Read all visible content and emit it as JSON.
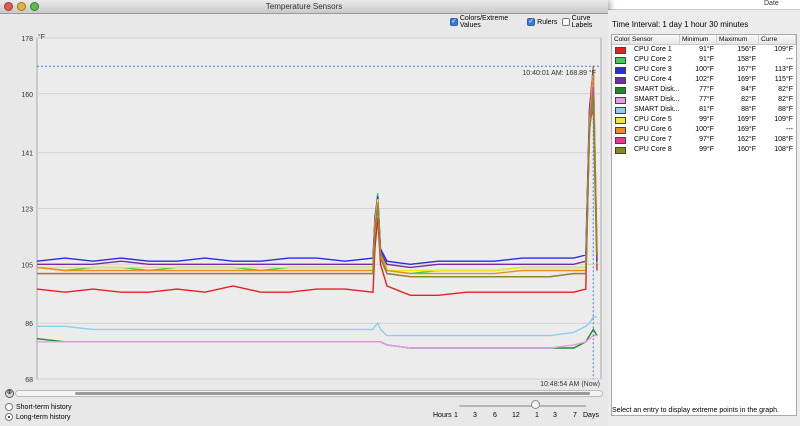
{
  "background": {
    "date_label": "Date"
  },
  "window": {
    "title": "Temperature Sensors"
  },
  "options": [
    {
      "label": "Colors/Extreme Values",
      "checked": true
    },
    {
      "label": "Rulers",
      "checked": true
    },
    {
      "label": "Curve Labels",
      "checked": false
    }
  ],
  "graph": {
    "unit": "°F",
    "y_ticks": [
      "178",
      "160",
      "141",
      "123",
      "105",
      "86",
      "68"
    ],
    "max_label": "10:40:01 AM: 168.89 °F",
    "now_label": "10:48:54 AM (Now)"
  },
  "chart_data": {
    "type": "line",
    "ylim": [
      68,
      178
    ],
    "y_ticks": [
      178,
      160,
      141,
      123,
      105,
      86,
      68
    ],
    "x": [
      0,
      30,
      60,
      90,
      120,
      150,
      180,
      210,
      240,
      270,
      300,
      330,
      360,
      362,
      365,
      368,
      375,
      400,
      430,
      460,
      490,
      520,
      550,
      575,
      588,
      592,
      596,
      600
    ],
    "series": [
      {
        "name": "CPU Core 1",
        "color": "#e82020",
        "values": [
          97,
          96,
          97,
          96,
          96,
          97,
          96,
          98,
          96,
          96,
          97,
          97,
          96,
          110,
          120,
          105,
          98,
          95,
          95,
          96,
          96,
          96,
          96,
          96,
          97,
          150,
          156,
          103
        ]
      },
      {
        "name": "CPU Core 2",
        "color": "#3ad24a",
        "values": [
          104,
          103,
          104,
          104,
          103,
          104,
          104,
          104,
          103,
          104,
          104,
          104,
          104,
          118,
          128,
          110,
          103,
          102,
          103,
          103,
          103,
          104,
          104,
          104,
          104,
          150,
          158,
          105
        ]
      },
      {
        "name": "CPU Core 3",
        "color": "#2c2ce0",
        "values": [
          106,
          107,
          106,
          107,
          106,
          106,
          107,
          106,
          106,
          107,
          107,
          106,
          107,
          120,
          127,
          110,
          106,
          105,
          106,
          106,
          106,
          107,
          107,
          107,
          108,
          155,
          167,
          108
        ]
      },
      {
        "name": "CPU Core 4",
        "color": "#7a2aa6",
        "values": [
          105,
          105,
          105,
          106,
          105,
          105,
          105,
          105,
          105,
          105,
          105,
          105,
          105,
          119,
          126,
          109,
          105,
          104,
          105,
          105,
          105,
          105,
          105,
          105,
          106,
          155,
          169,
          106
        ]
      },
      {
        "name": "SMART Disk 1",
        "color": "#1f8a2a",
        "values": [
          81,
          80,
          80,
          80,
          80,
          80,
          80,
          80,
          80,
          80,
          80,
          80,
          80,
          80,
          80,
          80,
          79,
          78,
          78,
          78,
          78,
          78,
          78,
          78,
          80,
          82,
          84,
          82
        ]
      },
      {
        "name": "SMART Disk 2",
        "color": "#e89ae8",
        "values": [
          80,
          80,
          80,
          80,
          80,
          80,
          80,
          80,
          80,
          80,
          80,
          80,
          80,
          80,
          80,
          80,
          79,
          78,
          78,
          78,
          78,
          78,
          78,
          79,
          80,
          81,
          82,
          82
        ]
      },
      {
        "name": "SMART Disk 3",
        "color": "#8ccfef",
        "values": [
          85,
          85,
          84,
          84,
          84,
          84,
          84,
          84,
          84,
          84,
          84,
          84,
          84,
          85,
          86,
          84,
          82,
          82,
          82,
          82,
          82,
          82,
          82,
          83,
          85,
          86,
          88,
          88
        ]
      },
      {
        "name": "CPU Core 5",
        "color": "#f2e62a",
        "values": [
          104,
          104,
          104,
          104,
          104,
          104,
          104,
          104,
          104,
          104,
          104,
          104,
          104,
          118,
          126,
          108,
          103,
          103,
          103,
          103,
          103,
          104,
          104,
          104,
          104,
          150,
          169,
          109
        ]
      },
      {
        "name": "CPU Core 6",
        "color": "#ec8b1e",
        "values": [
          104,
          103,
          103,
          103,
          103,
          103,
          103,
          103,
          103,
          103,
          103,
          103,
          103,
          117,
          125,
          108,
          103,
          102,
          102,
          102,
          102,
          103,
          103,
          103,
          103,
          150,
          169,
          108
        ]
      },
      {
        "name": "CPU Core 7",
        "color": "#e5399a",
        "values": [
          102,
          102,
          102,
          102,
          102,
          102,
          102,
          102,
          102,
          102,
          102,
          102,
          102,
          116,
          124,
          107,
          102,
          101,
          101,
          101,
          101,
          101,
          101,
          102,
          102,
          148,
          162,
          108
        ]
      },
      {
        "name": "CPU Core 8",
        "color": "#8a8a20",
        "values": [
          102,
          102,
          102,
          102,
          102,
          102,
          102,
          102,
          102,
          102,
          102,
          102,
          102,
          116,
          124,
          107,
          102,
          101,
          101,
          101,
          101,
          101,
          101,
          102,
          102,
          148,
          160,
          108
        ]
      }
    ],
    "max_marker": {
      "value": 168.89,
      "label": "10:40:01 AM: 168.89 °F"
    }
  },
  "history": {
    "short_label": "Short-term history",
    "long_label": "Long-term history",
    "selected": "long"
  },
  "slider": {
    "hours_label": "Hours",
    "days_label": "Days",
    "ticks": [
      "1",
      "3",
      "6",
      "12",
      "1",
      "3",
      "7"
    ],
    "value_fraction": 0.6
  },
  "panel": {
    "interval": "Time Interval: 1 day 1 hour 30 minutes",
    "headers": {
      "color": "Color",
      "sensor": "Sensor",
      "min": "Minimum",
      "max": "Maximum",
      "cur": "Curre"
    },
    "rows": [
      {
        "color": "#e82020",
        "sensor": "CPU Core 1",
        "min": "91°F",
        "max": "156°F",
        "cur": "109°F"
      },
      {
        "color": "#3ad24a",
        "sensor": "CPU Core 2",
        "min": "91°F",
        "max": "158°F",
        "cur": "---"
      },
      {
        "color": "#2c2ce0",
        "sensor": "CPU Core 3",
        "min": "100°F",
        "max": "167°F",
        "cur": "113°F"
      },
      {
        "color": "#7a2aa6",
        "sensor": "CPU Core 4",
        "min": "102°F",
        "max": "169°F",
        "cur": "115°F"
      },
      {
        "color": "#1f8a2a",
        "sensor": "SMART Disk...",
        "min": "77°F",
        "max": "84°F",
        "cur": "82°F"
      },
      {
        "color": "#e89ae8",
        "sensor": "SMART Disk...",
        "min": "77°F",
        "max": "82°F",
        "cur": "82°F"
      },
      {
        "color": "#8ccfef",
        "sensor": "SMART Disk...",
        "min": "81°F",
        "max": "88°F",
        "cur": "88°F"
      },
      {
        "color": "#f2e62a",
        "sensor": "CPU Core 5",
        "min": "99°F",
        "max": "169°F",
        "cur": "109°F"
      },
      {
        "color": "#ec8b1e",
        "sensor": "CPU Core 6",
        "min": "100°F",
        "max": "169°F",
        "cur": "---"
      },
      {
        "color": "#e5399a",
        "sensor": "CPU Core 7",
        "min": "97°F",
        "max": "162°F",
        "cur": "108°F"
      },
      {
        "color": "#8a8a20",
        "sensor": "CPU Core 8",
        "min": "99°F",
        "max": "160°F",
        "cur": "108°F"
      }
    ],
    "hint": "Select an entry to display extreme points in the graph."
  }
}
